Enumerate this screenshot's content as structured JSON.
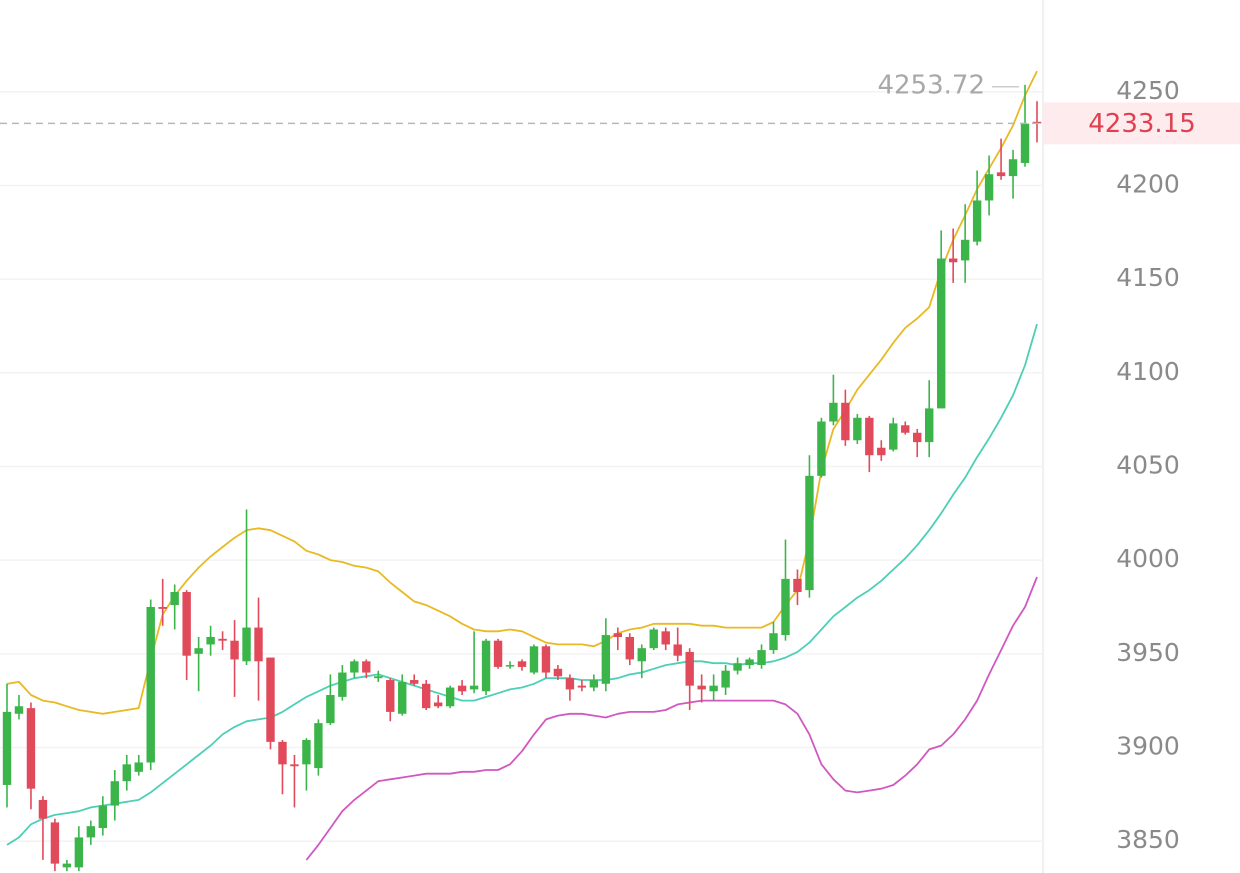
{
  "chart_data": {
    "type": "candlestick",
    "up_color": "#3bb54a",
    "down_color": "#e04a5a",
    "grid": true,
    "ylim": [
      3833,
      4299
    ],
    "yticks": [
      3850,
      3900,
      3950,
      4000,
      4050,
      4100,
      4150,
      4200,
      4250
    ],
    "open": [
      3880,
      3918,
      3921,
      3872,
      3860,
      3836,
      3836,
      3852,
      3857,
      3869,
      3882,
      3887,
      3892,
      3975,
      3976,
      3983,
      3950,
      3955,
      3958,
      3957,
      3946,
      3964,
      3948,
      3903,
      3891,
      3891,
      3889,
      3913,
      3927,
      3940,
      3946,
      3937,
      3936,
      3918,
      3936,
      3934,
      3924,
      3922,
      3933,
      3931,
      3930,
      3957,
      3944,
      3946,
      3940,
      3954,
      3942,
      3937,
      3933,
      3932,
      3934,
      3961,
      3959,
      3946,
      3953,
      3962,
      3955,
      3951,
      3933,
      3930,
      3932,
      3941,
      3944,
      3944,
      3952,
      3960,
      3990,
      3984,
      4045,
      4074,
      4084,
      4064,
      4076,
      4060,
      4059,
      4072,
      4068,
      4063,
      4081,
      4161,
      4160,
      4170,
      4192,
      4207,
      4205,
      4212,
      4234
    ],
    "high": [
      3934,
      3928,
      3924,
      3874,
      3862,
      3840,
      3858,
      3861,
      3874,
      3888,
      3896,
      3896,
      3979,
      3990,
      3987,
      3984,
      3959,
      3965,
      3962,
      3968,
      4027,
      3980,
      3948,
      3904,
      3896,
      3905,
      3915,
      3939,
      3944,
      3947,
      3947,
      3941,
      3937,
      3939,
      3939,
      3936,
      3928,
      3933,
      3936,
      3962,
      3958,
      3958,
      3946,
      3947,
      3955,
      3955,
      3944,
      3939,
      3936,
      3939,
      3969,
      3964,
      3961,
      3955,
      3964,
      3964,
      3964,
      3953,
      3939,
      3939,
      3944,
      3948,
      3948,
      3955,
      3967,
      4011,
      3995,
      4056,
      4076,
      4099,
      4091,
      4078,
      4077,
      4064,
      4076,
      4074,
      4070,
      4096,
      4176,
      4177,
      4190,
      4208,
      4216,
      4225,
      4219,
      4253.72,
      4245
    ],
    "low": [
      3868,
      3915,
      3867,
      3840,
      3834,
      3834,
      3834,
      3848,
      3853,
      3861,
      3877,
      3885,
      3888,
      3965,
      3963,
      3936,
      3930,
      3949,
      3952,
      3927,
      3944,
      3925,
      3899,
      3875,
      3868,
      3877,
      3885,
      3912,
      3925,
      3937,
      3937,
      3935,
      3914,
      3917,
      3933,
      3920,
      3921,
      3921,
      3928,
      3929,
      3928,
      3942,
      3942,
      3941,
      3939,
      3937,
      3936,
      3925,
      3930,
      3930,
      3930,
      3952,
      3944,
      3937,
      3952,
      3952,
      3946,
      3920,
      3924,
      3925,
      3928,
      3939,
      3942,
      3942,
      3950,
      3957,
      3976,
      3980,
      4044,
      4072,
      4061,
      4062,
      4047,
      4053,
      4058,
      4067,
      4055,
      4055,
      4081,
      4148,
      4148,
      4168,
      4184,
      4203,
      4193,
      4210,
      4223
    ],
    "close": [
      3919,
      3922,
      3878,
      3862,
      3838,
      3838,
      3852,
      3858,
      3869,
      3882,
      3891,
      3892,
      3975,
      3974,
      3983,
      3949,
      3953,
      3959,
      3957,
      3947,
      3964,
      3946,
      3903,
      3891,
      3890,
      3904,
      3913,
      3928,
      3940,
      3946,
      3940,
      3938,
      3919,
      3935,
      3934,
      3921,
      3922,
      3932,
      3930,
      3933,
      3957,
      3943,
      3944,
      3943,
      3954,
      3940,
      3938,
      3931,
      3932,
      3936,
      3960,
      3959,
      3947,
      3953,
      3963,
      3955,
      3949,
      3933,
      3931,
      3933,
      3941,
      3945,
      3947,
      3952,
      3961,
      3990,
      3983,
      4045,
      4074,
      4084,
      4064,
      4076,
      4056,
      4056,
      4073,
      4068,
      4063,
      4081,
      4161,
      4159,
      4171,
      4192,
      4206,
      4205,
      4214,
      4233,
      4233.15
    ],
    "series": [
      {
        "color": "#e8b923",
        "values": [
          3934,
          3935,
          3928,
          3925,
          3924,
          3922,
          3920,
          3919,
          3918,
          3919,
          3920,
          3921,
          3947,
          3971,
          3981,
          3989,
          3996,
          4002,
          4007,
          4012,
          4016,
          4017,
          4016,
          4013,
          4010,
          4005,
          4003,
          4000,
          3999,
          3997,
          3996,
          3994,
          3988,
          3983,
          3978,
          3976,
          3973,
          3970,
          3966,
          3963,
          3962,
          3962,
          3963,
          3962,
          3959,
          3956,
          3955,
          3955,
          3955,
          3954,
          3957,
          3961,
          3963,
          3964,
          3966,
          3966,
          3966,
          3966,
          3965,
          3965,
          3964,
          3964,
          3964,
          3964,
          3967,
          3976,
          3984,
          4011,
          4048,
          4070,
          4080,
          4091,
          4099,
          4107,
          4116,
          4124,
          4129,
          4135,
          4155,
          4171,
          4184,
          4198,
          4209,
          4220,
          4232,
          4248,
          4261
        ]
      },
      {
        "color": "#4ccfb6",
        "values": [
          3848,
          3852,
          3859,
          3862,
          3864,
          3865,
          3866,
          3868,
          3869,
          3870,
          3871,
          3872,
          3876,
          3881,
          3886,
          3891,
          3896,
          3901,
          3907,
          3911,
          3914,
          3915,
          3916,
          3919,
          3923,
          3927,
          3930,
          3933,
          3935,
          3937,
          3938,
          3939,
          3937,
          3935,
          3933,
          3931,
          3929,
          3927,
          3925,
          3925,
          3927,
          3929,
          3931,
          3932,
          3934,
          3937,
          3937,
          3937,
          3936,
          3936,
          3936,
          3937,
          3939,
          3940,
          3942,
          3944,
          3945,
          3946,
          3946,
          3945,
          3945,
          3944,
          3945,
          3945,
          3946,
          3948,
          3951,
          3956,
          3963,
          3970,
          3975,
          3980,
          3984,
          3989,
          3995,
          4001,
          4008,
          4016,
          4025,
          4035,
          4044,
          4055,
          4065,
          4076,
          4088,
          4104,
          4126
        ]
      },
      {
        "color": "#d058c0",
        "values": [
          null,
          null,
          null,
          null,
          null,
          null,
          null,
          null,
          null,
          null,
          null,
          null,
          null,
          null,
          null,
          null,
          null,
          null,
          null,
          null,
          null,
          null,
          null,
          null,
          null,
          3840,
          3848,
          3857,
          3866,
          3872,
          3877,
          3882,
          3883,
          3884,
          3885,
          3886,
          3886,
          3886,
          3887,
          3887,
          3888,
          3888,
          3891,
          3898,
          3907,
          3915,
          3917,
          3918,
          3918,
          3917,
          3916,
          3918,
          3919,
          3919,
          3919,
          3920,
          3923,
          3924,
          3925,
          3925,
          3925,
          3925,
          3925,
          3925,
          3925,
          3923,
          3918,
          3907,
          3891,
          3883,
          3877,
          3876,
          3877,
          3878,
          3880,
          3885,
          3891,
          3899,
          3901,
          3907,
          3915,
          3925,
          3939,
          3952,
          3965,
          3975,
          3991
        ]
      }
    ]
  }
}
